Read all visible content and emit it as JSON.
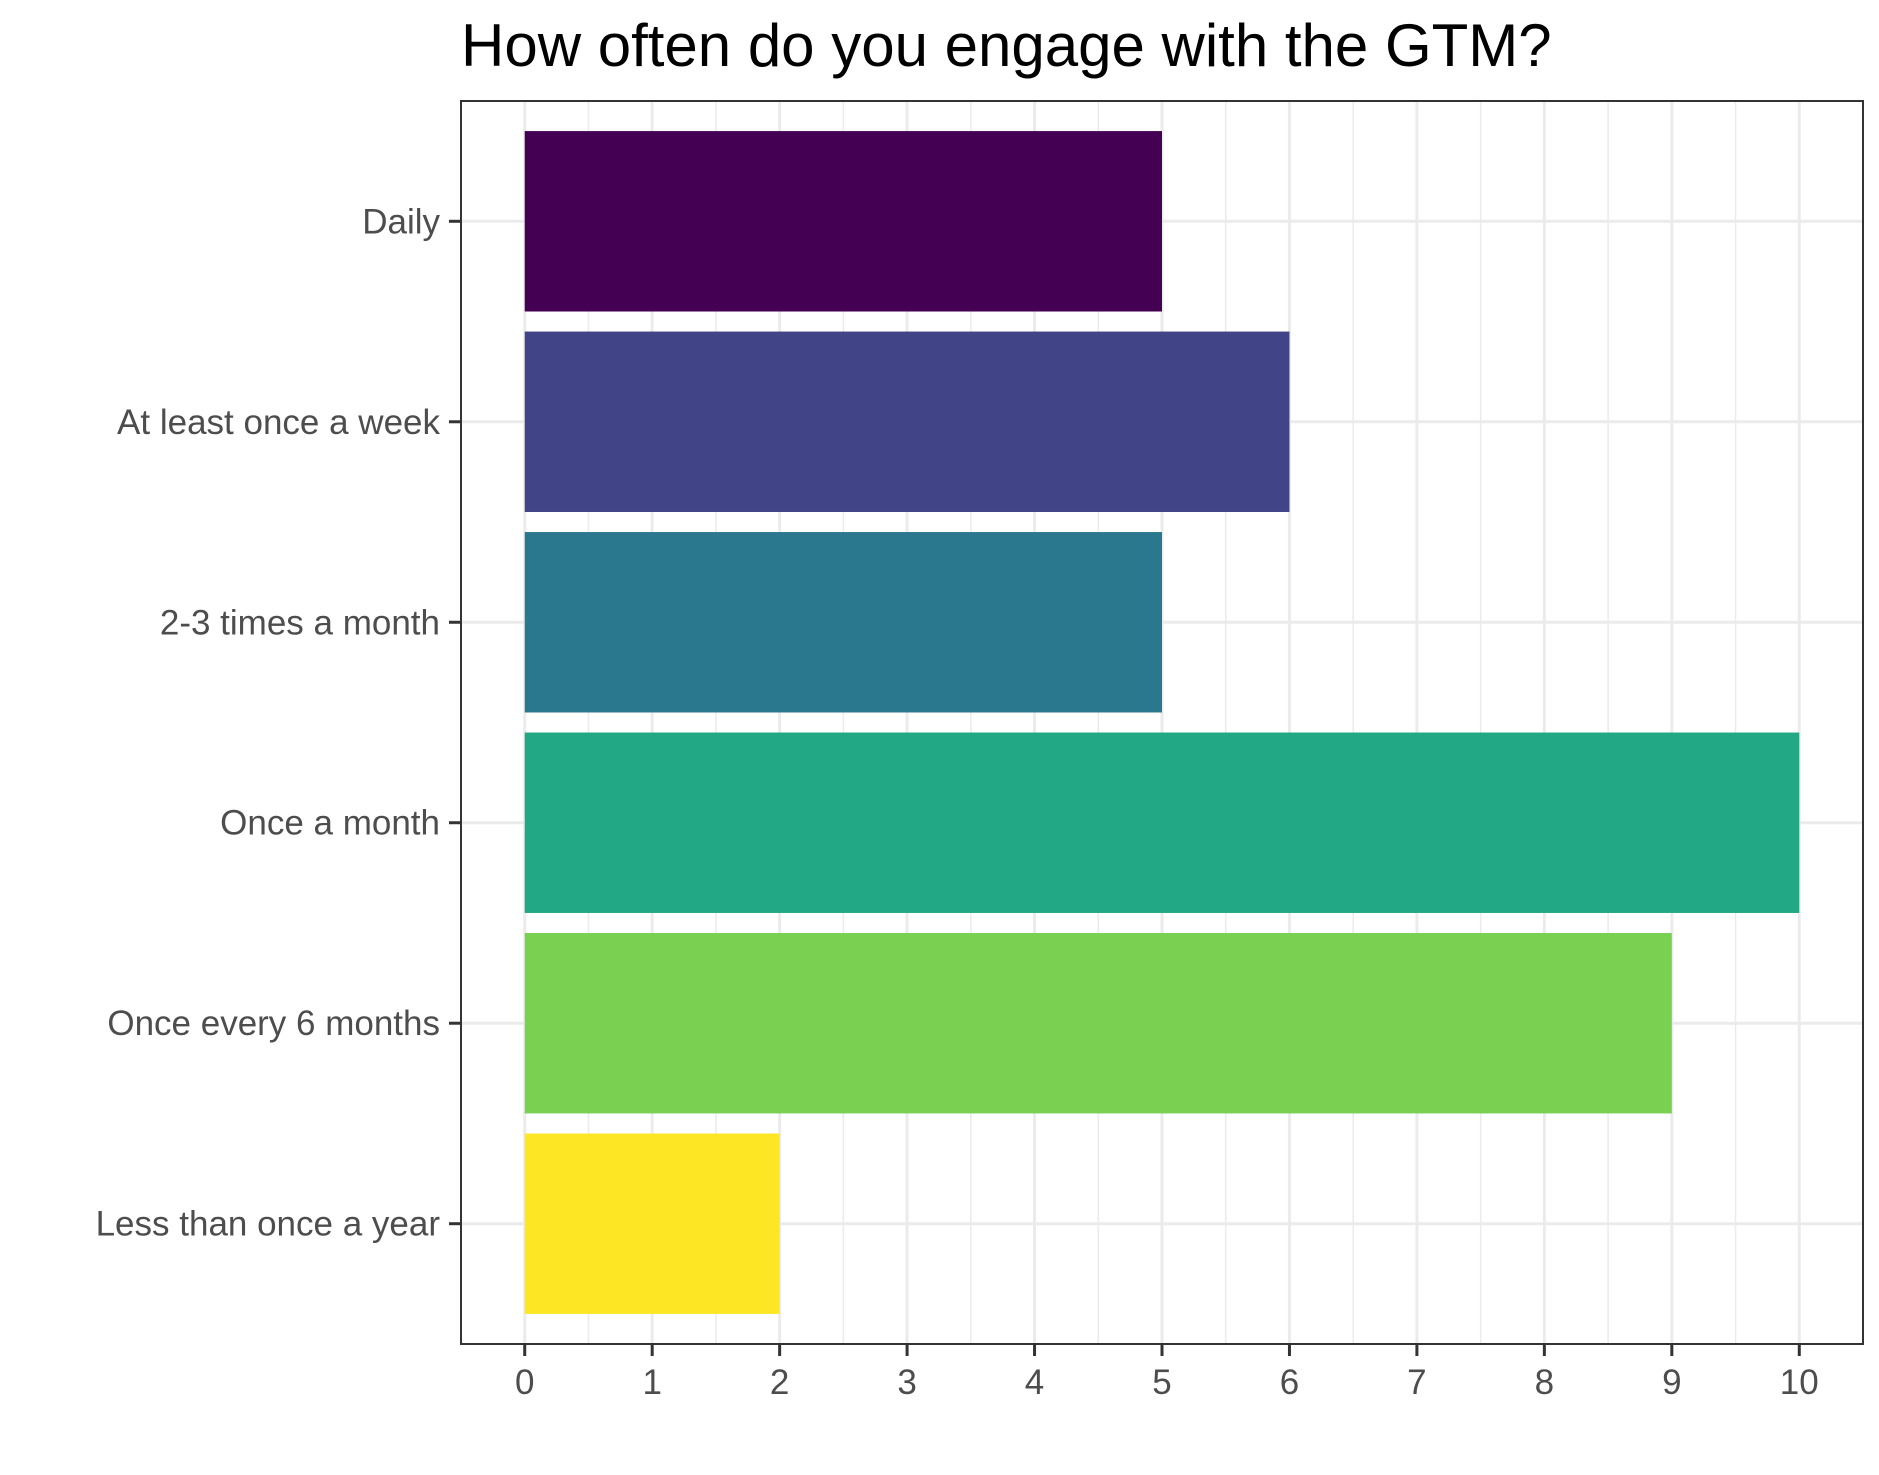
{
  "chart_data": {
    "type": "bar",
    "orientation": "horizontal",
    "title": "How often do you engage with the GTM?",
    "xlabel": "",
    "ylabel": "",
    "categories": [
      "Daily",
      "At least once a week",
      "2-3 times a month",
      "Once a month",
      "Once every 6 months",
      "Less than once a year"
    ],
    "values": [
      5,
      6,
      5,
      10,
      9,
      2
    ],
    "colors": [
      "#440154",
      "#414487",
      "#2A788E",
      "#22A884",
      "#7AD151",
      "#FDE725"
    ],
    "xlim": [
      -0.5,
      10.5
    ],
    "x_ticks": [
      0,
      1,
      2,
      3,
      4,
      5,
      6,
      7,
      8,
      9,
      10
    ],
    "x_tick_labels": [
      "0",
      "1",
      "2",
      "3",
      "4",
      "5",
      "6",
      "7",
      "8",
      "9",
      "10"
    ],
    "grid": true,
    "legend": "none",
    "theme": {
      "panel_border": "#333333",
      "grid_color": "#ebebeb",
      "tick_label_color": "#4d4d4d",
      "title_color": "#000000"
    }
  }
}
